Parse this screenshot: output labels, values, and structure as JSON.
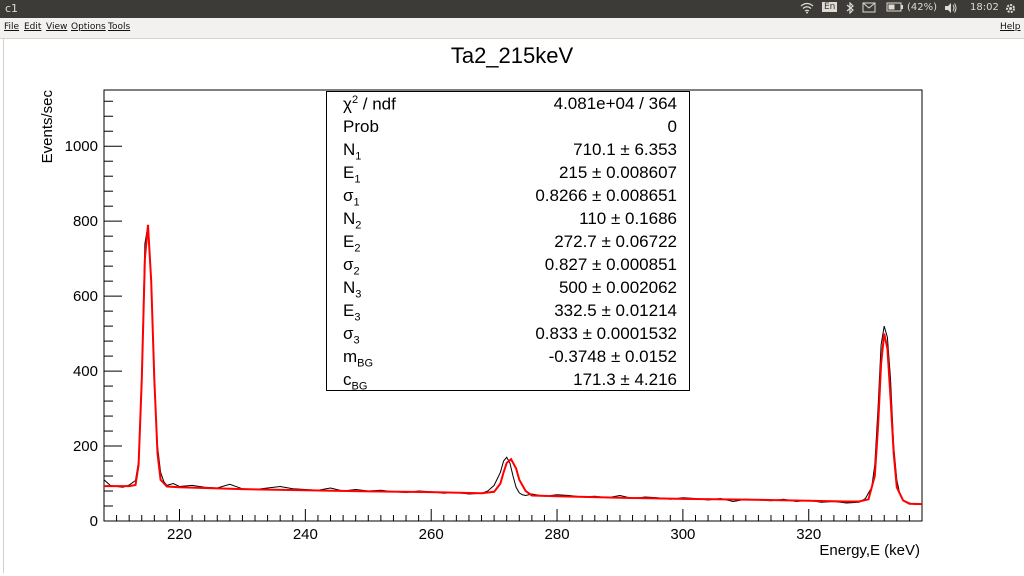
{
  "window": {
    "title": "c1"
  },
  "tray": {
    "battery": "(42%)",
    "time": "18:02",
    "keyboard": "En"
  },
  "menu": {
    "file": "File",
    "edit": "Edit",
    "view": "View",
    "options": "Options",
    "tools": "Tools",
    "help": "Help"
  },
  "stats": [
    {
      "name": "χ",
      "sup": "2",
      "suffix": " / ndf",
      "value": "4.081e+04 / 364"
    },
    {
      "name": "Prob",
      "value": "0"
    },
    {
      "name": "N",
      "sub": "1",
      "value": "710.1 ± 6.353"
    },
    {
      "name": "E",
      "sub": "1",
      "value": "215 ± 0.008607"
    },
    {
      "name": "σ",
      "sub": "1",
      "value": "0.8266 ± 0.008651"
    },
    {
      "name": "N",
      "sub": "2",
      "value": "110 ± 0.1686"
    },
    {
      "name": "E",
      "sub": "2",
      "value": "272.7 ± 0.06722"
    },
    {
      "name": "σ",
      "sub": "2",
      "value": "0.827 ± 0.000851"
    },
    {
      "name": "N",
      "sub": "3",
      "value": "500 ± 0.002062"
    },
    {
      "name": "E",
      "sub": "3",
      "value": "332.5 ± 0.01214"
    },
    {
      "name": "σ",
      "sub": "3",
      "value": "0.833 ± 0.0001532"
    },
    {
      "name": "m",
      "sub": "BG",
      "value": "-0.3748 ± 0.0152"
    },
    {
      "name": "c",
      "sub": "BG",
      "value": "171.3 ± 4.216"
    }
  ],
  "chart_data": {
    "type": "line",
    "title": "Ta2_215keV",
    "xlabel": "Energy,E (keV)",
    "ylabel": "Events/sec",
    "xlim": [
      208,
      338
    ],
    "ylim": [
      0,
      1150
    ],
    "xticks": [
      220,
      240,
      260,
      280,
      300,
      320
    ],
    "yticks": [
      0,
      200,
      400,
      600,
      800,
      1000
    ],
    "series": [
      {
        "kind": "data",
        "color": "#000000",
        "x": [
          208,
          209,
          210,
          211,
          212,
          213,
          213.5,
          214,
          214.5,
          215,
          215.5,
          216,
          216.5,
          217,
          217.5,
          218,
          219,
          220,
          222,
          224,
          226,
          228,
          230,
          232,
          234,
          236,
          238,
          240,
          242,
          244,
          246,
          248,
          250,
          252,
          254,
          256,
          258,
          260,
          262,
          264,
          266,
          268,
          269,
          270,
          271,
          271.5,
          272,
          272.5,
          273,
          273.5,
          274,
          274.5,
          275,
          276,
          278,
          280,
          282,
          284,
          286,
          288,
          290,
          292,
          294,
          296,
          298,
          300,
          302,
          304,
          306,
          308,
          310,
          312,
          314,
          316,
          318,
          320,
          322,
          324,
          326,
          328,
          329,
          330,
          330.5,
          331,
          331.5,
          332,
          332.5,
          333,
          333.5,
          334,
          334.5,
          335,
          336,
          337,
          338
        ],
        "y": [
          110,
          95,
          92,
          90,
          96,
          108,
          160,
          400,
          740,
          790,
          640,
          360,
          200,
          130,
          105,
          95,
          100,
          92,
          95,
          90,
          88,
          98,
          86,
          84,
          88,
          92,
          86,
          84,
          82,
          88,
          80,
          84,
          80,
          82,
          78,
          76,
          80,
          78,
          74,
          76,
          72,
          74,
          80,
          95,
          130,
          160,
          170,
          155,
          120,
          90,
          75,
          70,
          68,
          72,
          66,
          70,
          68,
          64,
          66,
          62,
          68,
          60,
          64,
          62,
          58,
          62,
          60,
          56,
          60,
          52,
          58,
          56,
          54,
          58,
          52,
          55,
          50,
          52,
          48,
          50,
          60,
          90,
          150,
          300,
          470,
          520,
          490,
          380,
          200,
          110,
          70,
          55,
          48,
          44,
          46
        ]
      },
      {
        "kind": "fit",
        "color": "#ff0000",
        "x": [
          208,
          210,
          212,
          213,
          213.5,
          214,
          214.5,
          215,
          215.5,
          216,
          216.5,
          217,
          218,
          220,
          230,
          240,
          250,
          260,
          268,
          270,
          271,
          271.5,
          272,
          272.7,
          273.5,
          274,
          275,
          276,
          280,
          290,
          300,
          310,
          320,
          326,
          328,
          329.5,
          330.5,
          331,
          331.5,
          332,
          332.5,
          333,
          333.5,
          334,
          335,
          336,
          338
        ],
        "y": [
          93,
          93,
          93,
          96,
          150,
          380,
          700,
          790,
          640,
          380,
          180,
          110,
          92,
          90,
          85,
          82,
          79,
          77,
          74,
          78,
          100,
          130,
          155,
          165,
          140,
          110,
          80,
          68,
          66,
          62,
          59,
          57,
          54,
          52,
          52,
          58,
          120,
          250,
          420,
          500,
          460,
          330,
          180,
          90,
          55,
          46,
          45
        ]
      }
    ]
  }
}
